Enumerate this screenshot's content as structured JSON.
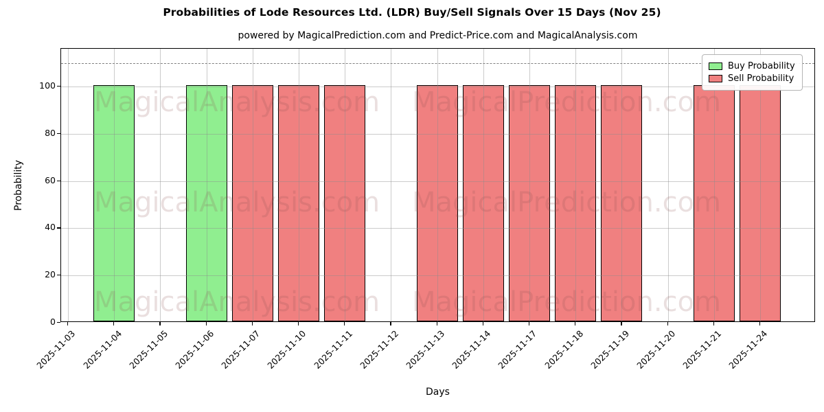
{
  "header": {
    "title": "Probabilities of Lode Resources Ltd. (LDR) Buy/Sell Signals Over 15 Days (Nov 25)",
    "subtitle": "powered by MagicalPrediction.com and Predict-Price.com and MagicalAnalysis.com"
  },
  "chart_data": {
    "type": "bar",
    "title": "Probabilities of Lode Resources Ltd. (LDR) Buy/Sell Signals Over 15 Days (Nov 25)",
    "subtitle": "powered by MagicalPrediction.com and Predict-Price.com and MagicalAnalysis.com",
    "xlabel": "Days",
    "ylabel": "Probability",
    "ylim": [
      0,
      116
    ],
    "yticks": [
      0,
      20,
      40,
      60,
      80,
      100
    ],
    "grid": true,
    "threshold_line": {
      "y": 110,
      "style": "dashed",
      "color": "#7f7f7f"
    },
    "legend_position": "upper-right",
    "categories": [
      "2025-11-03",
      "2025-11-04",
      "2025-11-05",
      "2025-11-06",
      "2025-11-07",
      "2025-11-10",
      "2025-11-11",
      "2025-11-12",
      "2025-11-13",
      "2025-11-14",
      "2025-11-17",
      "2025-11-18",
      "2025-11-19",
      "2025-11-20",
      "2025-11-21",
      "2025-11-24"
    ],
    "series": [
      {
        "name": "Buy Probability",
        "color": "#90ee90",
        "values": [
          null,
          100,
          null,
          100,
          null,
          null,
          null,
          null,
          null,
          null,
          null,
          null,
          null,
          null,
          null,
          null
        ]
      },
      {
        "name": "Sell Probability",
        "color": "#f08080",
        "values": [
          null,
          null,
          null,
          null,
          100,
          100,
          100,
          null,
          100,
          100,
          100,
          100,
          100,
          null,
          100,
          100
        ]
      }
    ]
  },
  "watermarks": {
    "left_text": "MagicalAnalysis.com",
    "right_text": "MagicalPrediction.com"
  },
  "colors": {
    "buy": "#90ee90",
    "sell": "#f08080",
    "bar_edge": "#000000",
    "grid": "#8c8c8c",
    "threshold": "#7f7f7f",
    "watermark": "rgba(139,80,80,0.18)"
  }
}
